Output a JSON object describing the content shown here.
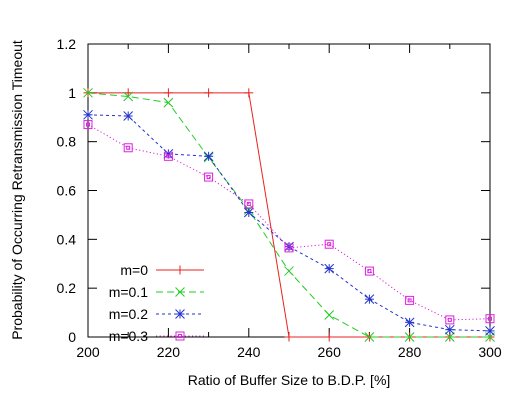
{
  "chart_data": {
    "type": "line",
    "xlabel": "Ratio of Buffer Size to B.D.P. [%]",
    "ylabel": "Probability of Occurring Retransmission Timeout",
    "xlim": [
      200,
      300
    ],
    "ylim": [
      0,
      1.2
    ],
    "xticks": [
      "200",
      "220",
      "240",
      "260",
      "280",
      "300"
    ],
    "yticks": [
      "0",
      "0.2",
      "0.4",
      "0.6",
      "0.8",
      "1",
      "1.2"
    ],
    "grid": false,
    "legend_position": "bottom-left",
    "series": [
      {
        "name": "m=0",
        "color": "#e8221f",
        "dash": "solid",
        "marker": "plus",
        "points": [
          [
            200,
            1.0
          ],
          [
            210,
            1.0
          ],
          [
            220,
            1.0
          ],
          [
            230,
            1.0
          ],
          [
            240,
            1.0
          ],
          [
            250,
            0
          ],
          [
            260,
            0
          ],
          [
            270,
            0
          ],
          [
            280,
            0
          ],
          [
            290,
            0
          ],
          [
            300,
            0
          ]
        ]
      },
      {
        "name": "m=0.1",
        "color": "#22cc22",
        "dash": "long-dash",
        "marker": "x",
        "points": [
          [
            200,
            1.0
          ],
          [
            210,
            0.985
          ],
          [
            220,
            0.96
          ],
          [
            230,
            0.735
          ],
          [
            240,
            0.52
          ],
          [
            250,
            0.27
          ],
          [
            260,
            0.09
          ],
          [
            270,
            0.0
          ],
          [
            280,
            0.0
          ],
          [
            290,
            0.0
          ],
          [
            300,
            0.0
          ]
        ]
      },
      {
        "name": "m=0.2",
        "color": "#2233cc",
        "dash": "short-dash",
        "marker": "star",
        "points": [
          [
            200,
            0.91
          ],
          [
            210,
            0.905
          ],
          [
            220,
            0.75
          ],
          [
            230,
            0.74
          ],
          [
            240,
            0.51
          ],
          [
            250,
            0.37
          ],
          [
            260,
            0.28
          ],
          [
            270,
            0.155
          ],
          [
            280,
            0.06
          ],
          [
            290,
            0.03
          ],
          [
            300,
            0.025
          ]
        ]
      },
      {
        "name": "m=0.3",
        "color": "#dd22dd",
        "dash": "dotted",
        "marker": "square",
        "points": [
          [
            200,
            0.87
          ],
          [
            210,
            0.775
          ],
          [
            220,
            0.74
          ],
          [
            230,
            0.655
          ],
          [
            240,
            0.545
          ],
          [
            250,
            0.365
          ],
          [
            260,
            0.38
          ],
          [
            270,
            0.27
          ],
          [
            280,
            0.15
          ],
          [
            290,
            0.07
          ],
          [
            300,
            0.075
          ]
        ]
      }
    ]
  }
}
